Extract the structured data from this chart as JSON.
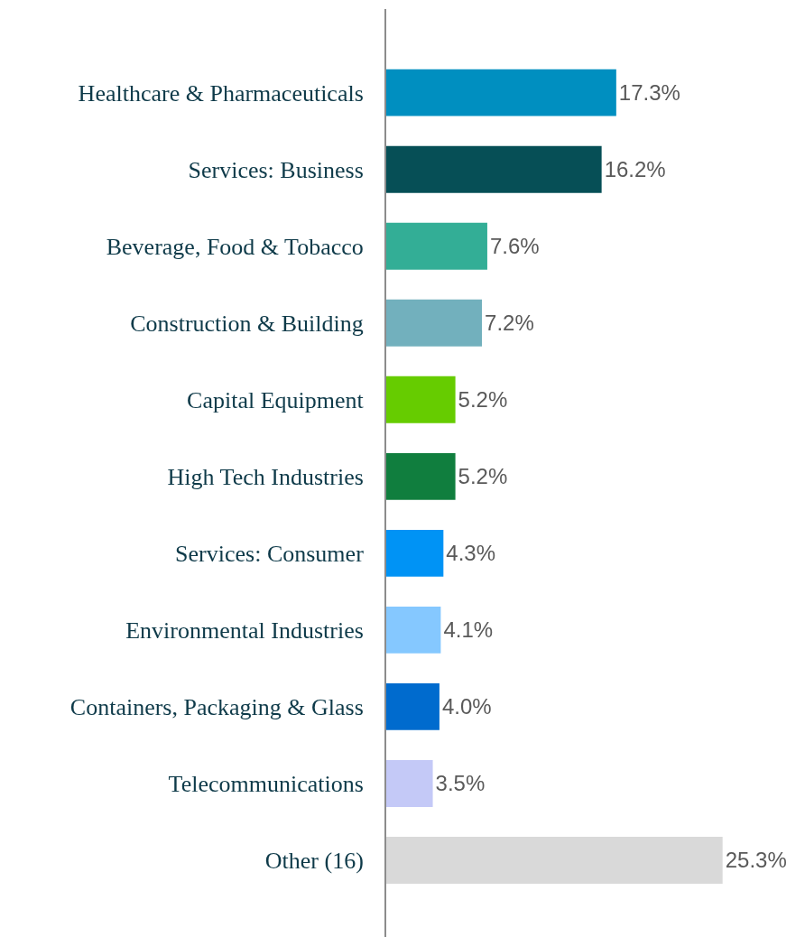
{
  "chart_data": {
    "type": "bar",
    "orientation": "horizontal",
    "categories": [
      "Healthcare & Pharmaceuticals",
      "Services: Business",
      "Beverage, Food & Tobacco",
      "Construction & Building",
      "Capital Equipment",
      "High Tech Industries",
      "Services: Consumer",
      "Environmental Industries",
      "Containers, Packaging & Glass",
      "Telecommunications",
      "Other (16)"
    ],
    "values": [
      17.3,
      16.2,
      7.6,
      7.2,
      5.2,
      5.2,
      4.3,
      4.1,
      4.0,
      3.5,
      25.3
    ],
    "value_labels": [
      "17.3%",
      "16.2%",
      "7.6%",
      "7.2%",
      "5.2%",
      "5.2%",
      "4.3%",
      "4.1%",
      "4.0%",
      "3.5%",
      "25.3%"
    ],
    "colors": [
      "#008fc0",
      "#064f56",
      "#33ae96",
      "#72b0bd",
      "#66cc00",
      "#107e3e",
      "#0093f5",
      "#85c8ff",
      "#006bce",
      "#c4c9f7",
      "#d9d9d9"
    ]
  }
}
